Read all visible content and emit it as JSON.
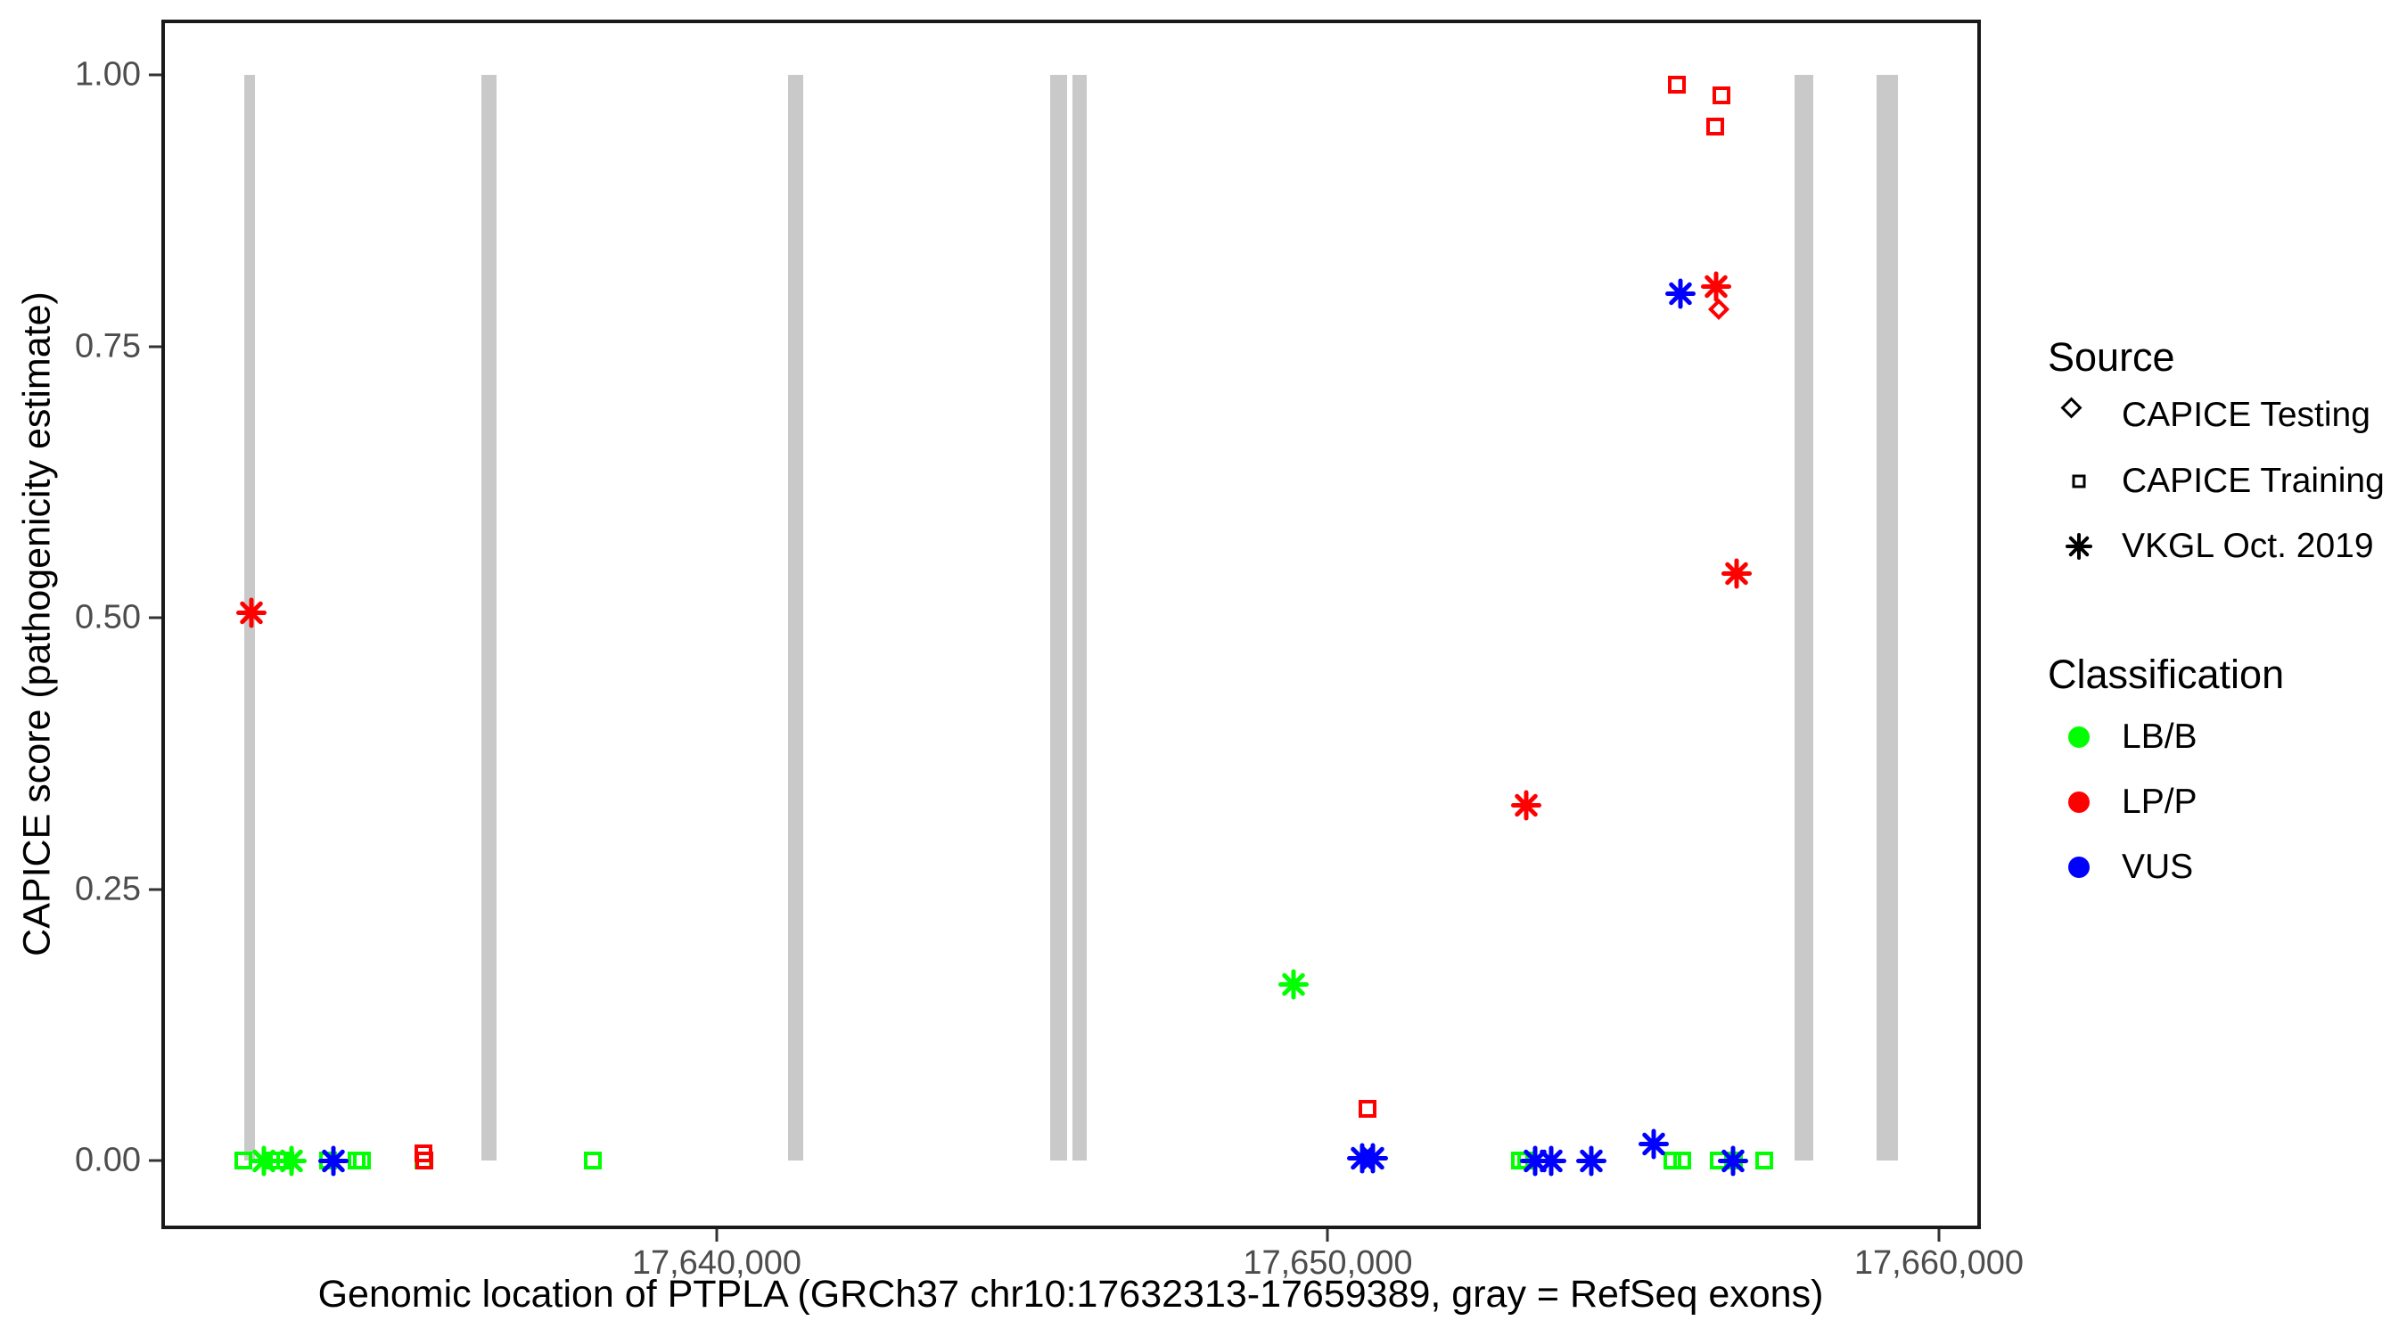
{
  "figure": {
    "x_axis_title": "Genomic location of PTPLA (GRCh37 chr10:17632313-17659389, gray = RefSeq exons)",
    "y_axis_title": "CAPICE score (pathogenicity estimate)"
  },
  "axes": {
    "x": {
      "domain": [
        17630913,
        17660686
      ],
      "ticks": [
        {
          "value": 17640000,
          "label": "17,640,000"
        },
        {
          "value": 17650000,
          "label": "17,650,000"
        },
        {
          "value": 17660000,
          "label": "17,660,000"
        }
      ]
    },
    "y": {
      "domain": [
        -0.0632,
        1.0512
      ],
      "ticks": [
        {
          "value": 0.0,
          "label": "0.00"
        },
        {
          "value": 0.25,
          "label": "0.25"
        },
        {
          "value": 0.5,
          "label": "0.50"
        },
        {
          "value": 0.75,
          "label": "0.75"
        },
        {
          "value": 1.0,
          "label": "1.00"
        }
      ]
    }
  },
  "colors": {
    "exon": "#c9c9c9",
    "LB/B": "#00ff00",
    "LP/P": "#ff0000",
    "VUS": "#0000ff",
    "tick_label": "#4d4d4d",
    "axis": "#1a1a1a"
  },
  "legend": {
    "source": {
      "title": "Source",
      "items": [
        {
          "shape": "diamond",
          "label": "CAPICE Testing"
        },
        {
          "shape": "square",
          "label": "CAPICE Training"
        },
        {
          "shape": "asterisk",
          "label": "VKGL Oct. 2019"
        }
      ]
    },
    "classification": {
      "title": "Classification",
      "items": [
        {
          "label": "LB/B",
          "color": "#00ff00"
        },
        {
          "label": "LP/P",
          "color": "#ff0000"
        },
        {
          "label": "VUS",
          "color": "#0000ff"
        }
      ]
    }
  },
  "chart_data": {
    "type": "scatter",
    "title": "",
    "xlabel": "Genomic location of PTPLA (GRCh37 chr10:17632313-17659389, gray = RefSeq exons)",
    "ylabel": "CAPICE score (pathogenicity estimate)",
    "xlim": [
      17630913,
      17660686
    ],
    "ylim": [
      0,
      1
    ],
    "grid": false,
    "legend_position": "right",
    "shape_by_source": {
      "CAPICE Testing": "diamond",
      "CAPICE Training": "square",
      "VKGL Oct. 2019": "asterisk"
    },
    "exons_note": "gray vertical bars = RefSeq exons, drawn from score 0 to 1",
    "exons": [
      [
        17632268,
        17632443
      ],
      [
        17636148,
        17636396
      ],
      [
        17641167,
        17641415
      ],
      [
        17645456,
        17645733
      ],
      [
        17645821,
        17646054
      ],
      [
        17657637,
        17657943
      ],
      [
        17658979,
        17659329
      ]
    ],
    "points": [
      {
        "pos": 17632253,
        "score": 0.0,
        "classification": "LB/B",
        "source": "CAPICE Training"
      },
      {
        "pos": 17632706,
        "score": 0.0,
        "classification": "LB/B",
        "source": "CAPICE Training"
      },
      {
        "pos": 17632823,
        "score": 0.0,
        "classification": "LB/B",
        "source": "CAPICE Training"
      },
      {
        "pos": 17632940,
        "score": 0.0,
        "classification": "LB/B",
        "source": "CAPICE Training"
      },
      {
        "pos": 17633640,
        "score": 0.0,
        "classification": "LB/B",
        "source": "CAPICE Training"
      },
      {
        "pos": 17634107,
        "score": 0.0,
        "classification": "LB/B",
        "source": "CAPICE Training"
      },
      {
        "pos": 17634194,
        "score": 0.0,
        "classification": "LB/B",
        "source": "CAPICE Training"
      },
      {
        "pos": 17635200,
        "score": 0.0,
        "classification": "LB/B",
        "source": "CAPICE Training"
      },
      {
        "pos": 17637972,
        "score": 0.0,
        "classification": "LB/B",
        "source": "CAPICE Training"
      },
      {
        "pos": 17653144,
        "score": 0.0,
        "classification": "LB/B",
        "source": "CAPICE Training"
      },
      {
        "pos": 17653246,
        "score": 0.0,
        "classification": "LB/B",
        "source": "CAPICE Training"
      },
      {
        "pos": 17655639,
        "score": 0.0,
        "classification": "LB/B",
        "source": "CAPICE Training"
      },
      {
        "pos": 17655799,
        "score": 0.0,
        "classification": "LB/B",
        "source": "CAPICE Training"
      },
      {
        "pos": 17656397,
        "score": 0.0,
        "classification": "LB/B",
        "source": "CAPICE Training"
      },
      {
        "pos": 17656645,
        "score": 0.0,
        "classification": "LB/B",
        "source": "CAPICE Training"
      },
      {
        "pos": 17657141,
        "score": 0.0,
        "classification": "LB/B",
        "source": "CAPICE Training"
      },
      {
        "pos": 17635210,
        "score": 0.0,
        "classification": "LP/P",
        "source": "CAPICE Training"
      },
      {
        "pos": 17635200,
        "score": 0.007,
        "classification": "LP/P",
        "source": "CAPICE Training"
      },
      {
        "pos": 17650649,
        "score": 0.048,
        "classification": "LP/P",
        "source": "CAPICE Training"
      },
      {
        "pos": 17655712,
        "score": 0.991,
        "classification": "LP/P",
        "source": "CAPICE Training"
      },
      {
        "pos": 17656339,
        "score": 0.953,
        "classification": "LP/P",
        "source": "CAPICE Training"
      },
      {
        "pos": 17656441,
        "score": 0.981,
        "classification": "LP/P",
        "source": "CAPICE Training"
      },
      {
        "pos": 17632385,
        "score": 0.505,
        "classification": "LP/P",
        "source": "VKGL Oct. 2019"
      },
      {
        "pos": 17632589,
        "score": 0.0,
        "classification": "LB/B",
        "source": "VKGL Oct. 2019"
      },
      {
        "pos": 17633042,
        "score": 0.0,
        "classification": "LB/B",
        "source": "VKGL Oct. 2019"
      },
      {
        "pos": 17633727,
        "score": 0.0,
        "classification": "VUS",
        "source": "VKGL Oct. 2019"
      },
      {
        "pos": 17649438,
        "score": 0.162,
        "classification": "LB/B",
        "source": "VKGL Oct. 2019"
      },
      {
        "pos": 17650562,
        "score": 0.002,
        "classification": "VUS",
        "source": "VKGL Oct. 2019"
      },
      {
        "pos": 17650737,
        "score": 0.002,
        "classification": "VUS",
        "source": "VKGL Oct. 2019"
      },
      {
        "pos": 17653246,
        "score": 0.327,
        "classification": "LP/P",
        "source": "VKGL Oct. 2019"
      },
      {
        "pos": 17653392,
        "score": 0.0,
        "classification": "VUS",
        "source": "VKGL Oct. 2019"
      },
      {
        "pos": 17653655,
        "score": 0.0,
        "classification": "VUS",
        "source": "VKGL Oct. 2019"
      },
      {
        "pos": 17654311,
        "score": 0.0,
        "classification": "VUS",
        "source": "VKGL Oct. 2019"
      },
      {
        "pos": 17655332,
        "score": 0.015,
        "classification": "VUS",
        "source": "VKGL Oct. 2019"
      },
      {
        "pos": 17655770,
        "score": 0.799,
        "classification": "VUS",
        "source": "VKGL Oct. 2019"
      },
      {
        "pos": 17656354,
        "score": 0.805,
        "classification": "LP/P",
        "source": "VKGL Oct. 2019"
      },
      {
        "pos": 17656631,
        "score": 0.0,
        "classification": "VUS",
        "source": "VKGL Oct. 2019"
      },
      {
        "pos": 17656688,
        "score": 0.541,
        "classification": "LP/P",
        "source": "VKGL Oct. 2019"
      },
      {
        "pos": 17656397,
        "score": 0.784,
        "classification": "LP/P",
        "source": "CAPICE Testing"
      }
    ]
  }
}
